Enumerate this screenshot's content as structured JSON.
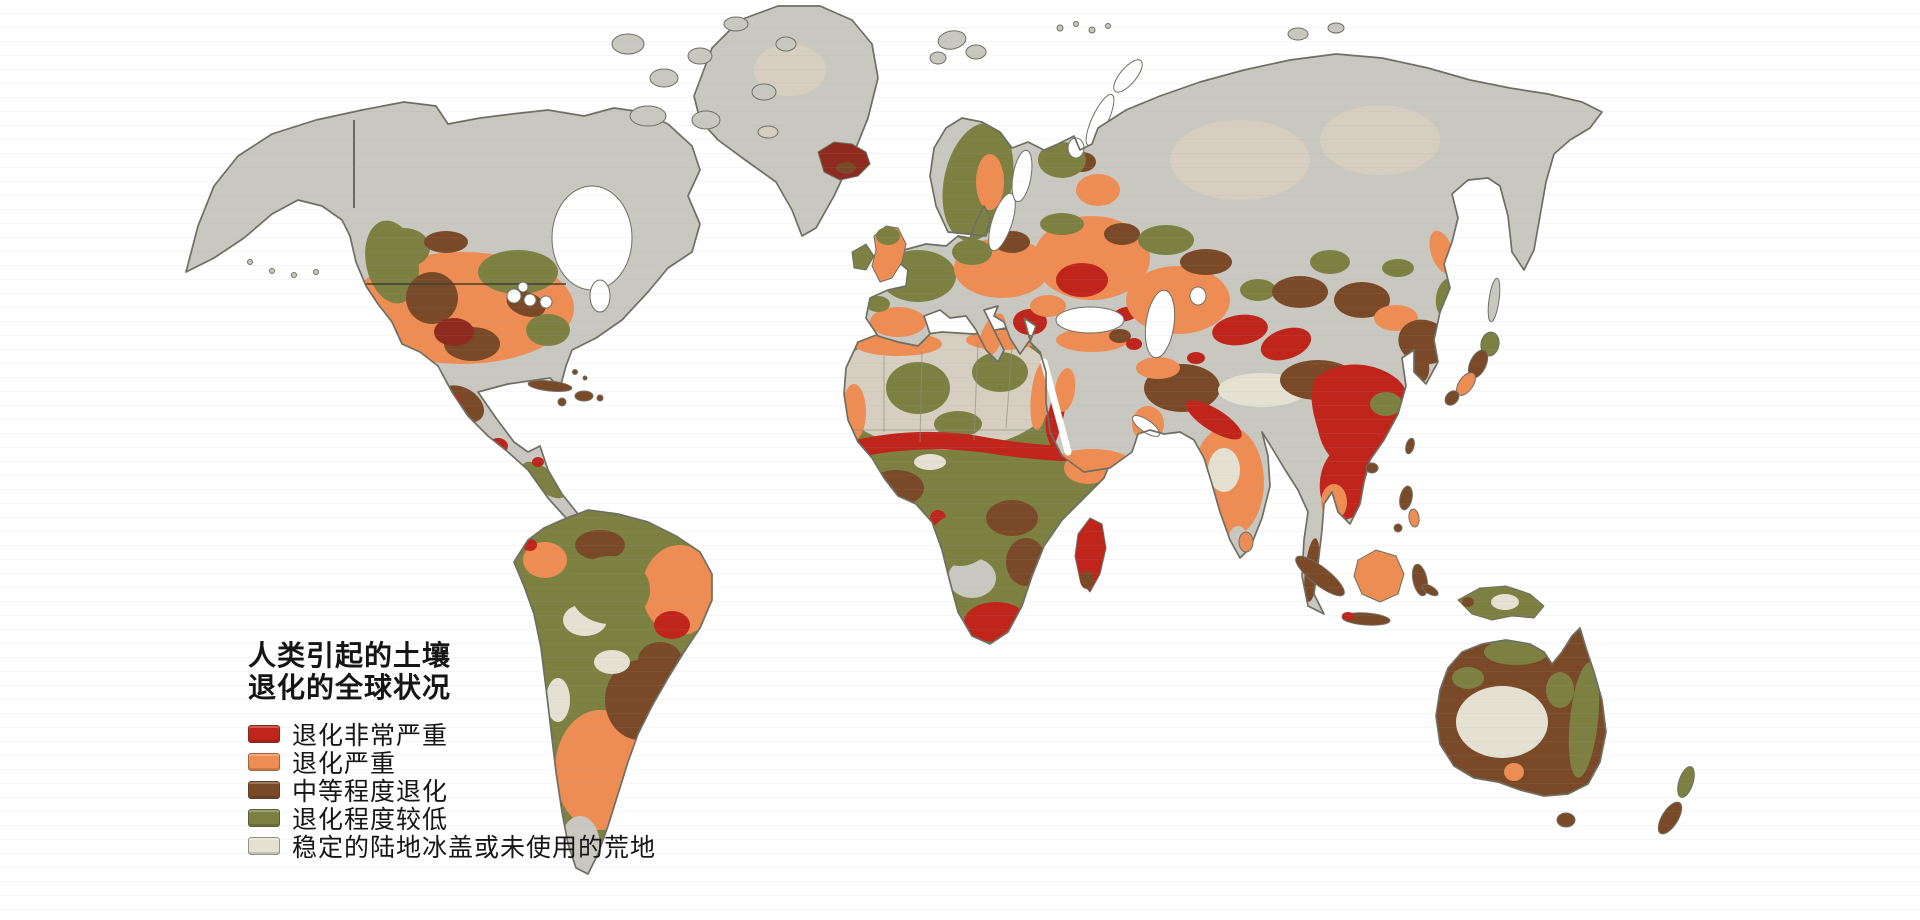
{
  "title": {
    "line1": "人类引起的土壤",
    "line2": "退化的全球状况"
  },
  "legend": {
    "items": [
      {
        "label": "退化非常严重",
        "color": "#c0251b"
      },
      {
        "label": "退化严重",
        "color": "#ee8d53"
      },
      {
        "label": "中等程度退化",
        "color": "#7a4a28"
      },
      {
        "label": "退化程度较低",
        "color": "#7c8142"
      },
      {
        "label": "稳定的陆地冰盖或未使用的荒地",
        "color": "#e4e1d3"
      }
    ]
  },
  "map": {
    "colors": {
      "ocean": "#ffffff",
      "land_stable": "#c9c8c0",
      "land_tan": "#d6cec0",
      "outline": "#6f6e62",
      "dark_red": "#8e2b1e",
      "border_line": "#3f3e35"
    }
  }
}
